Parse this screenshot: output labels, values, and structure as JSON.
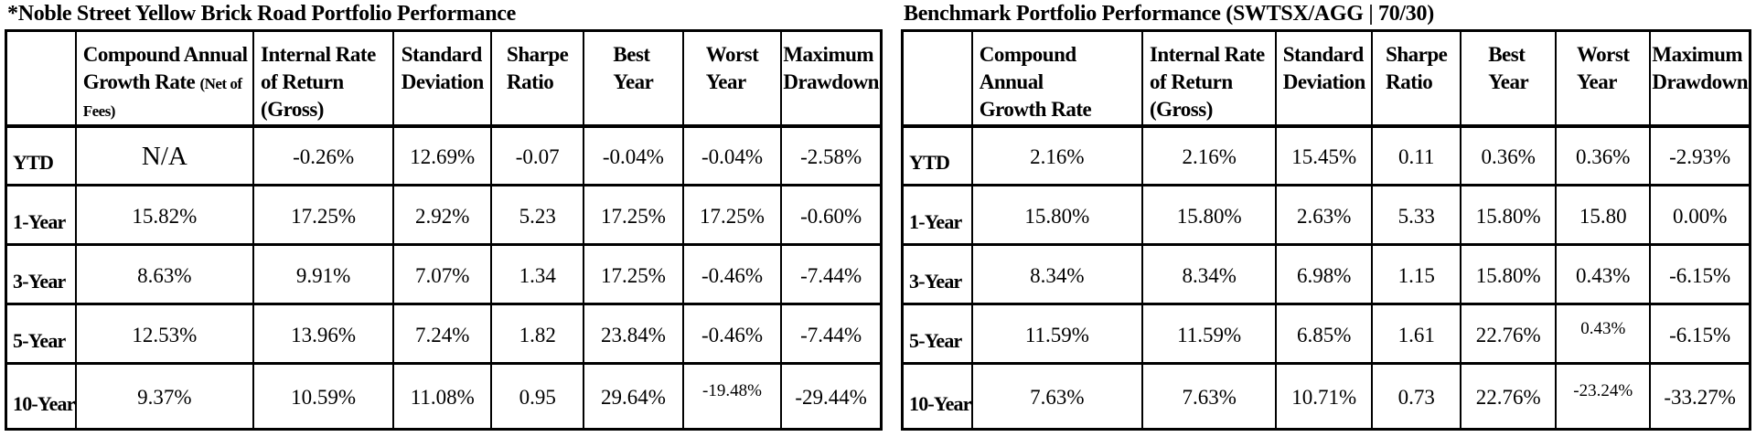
{
  "page": {
    "background_color": "#ffffff",
    "text_color": "#000000",
    "border_color": "#000000"
  },
  "left_table": {
    "title": "*Noble Street Yellow Brick Road Portfolio Performance",
    "columns": [
      {
        "lines": []
      },
      {
        "lines": [
          "Compound Annual",
          "Growth Rate"
        ],
        "suffix": "(Net of Fees)"
      },
      {
        "lines": [
          "Internal Rate",
          "of Return (Gross)"
        ]
      },
      {
        "lines": [
          "Standard",
          "Deviation"
        ]
      },
      {
        "lines": [
          "Sharpe",
          "Ratio"
        ]
      },
      {
        "lines": [
          "Best",
          "Year"
        ]
      },
      {
        "lines": [
          "Worst",
          "Year"
        ]
      },
      {
        "lines": [
          "Maximum",
          "Drawdown"
        ]
      }
    ],
    "rows": [
      {
        "label": "YTD",
        "values": [
          "N/A",
          "-0.26%",
          "12.69%",
          "-0.07",
          "-0.04%",
          "-0.04%",
          "-2.58%"
        ]
      },
      {
        "label": "1-Year",
        "values": [
          "15.82%",
          "17.25%",
          "2.92%",
          "5.23",
          "17.25%",
          "17.25%",
          "-0.60%"
        ]
      },
      {
        "label": "3-Year",
        "values": [
          "8.63%",
          "9.91%",
          "7.07%",
          "1.34",
          "17.25%",
          "-0.46%",
          "-7.44%"
        ]
      },
      {
        "label": "5-Year",
        "values": [
          "12.53%",
          "13.96%",
          "7.24%",
          "1.82",
          "23.84%",
          "-0.46%",
          "-7.44%"
        ]
      },
      {
        "label": "10-Year",
        "values": [
          "9.37%",
          "10.59%",
          "11.08%",
          "0.95",
          "29.64%",
          "-19.48%",
          "-29.44%"
        ]
      }
    ],
    "small_cells": [
      [
        4,
        5
      ]
    ]
  },
  "right_table": {
    "title": "Benchmark Portfolio Performance (SWTSX/AGG | 70/30)",
    "columns": [
      {
        "lines": []
      },
      {
        "lines": [
          "Compound Annual",
          "Growth Rate"
        ]
      },
      {
        "lines": [
          "Internal Rate",
          "of Return (Gross)"
        ]
      },
      {
        "lines": [
          "Standard",
          "Deviation"
        ]
      },
      {
        "lines": [
          "Sharpe",
          "Ratio"
        ]
      },
      {
        "lines": [
          "Best",
          "Year"
        ]
      },
      {
        "lines": [
          "Worst",
          "Year"
        ]
      },
      {
        "lines": [
          "Maximum",
          "Drawdown"
        ]
      }
    ],
    "rows": [
      {
        "label": "YTD",
        "values": [
          "2.16%",
          "2.16%",
          "15.45%",
          "0.11",
          "0.36%",
          "0.36%",
          "-2.93%"
        ]
      },
      {
        "label": "1-Year",
        "values": [
          "15.80%",
          "15.80%",
          "2.63%",
          "5.33",
          "15.80%",
          "15.80",
          "0.00%"
        ]
      },
      {
        "label": "3-Year",
        "values": [
          "8.34%",
          "8.34%",
          "6.98%",
          "1.15",
          "15.80%",
          "0.43%",
          "-6.15%"
        ]
      },
      {
        "label": "5-Year",
        "values": [
          "11.59%",
          "11.59%",
          "6.85%",
          "1.61",
          "22.76%",
          "0.43%",
          "-6.15%"
        ]
      },
      {
        "label": "10-Year",
        "values": [
          "7.63%",
          "7.63%",
          "10.71%",
          "0.73",
          "22.76%",
          "-23.24%",
          "-33.27%"
        ]
      }
    ],
    "small_cells": [
      [
        3,
        5
      ],
      [
        4,
        5
      ]
    ]
  }
}
